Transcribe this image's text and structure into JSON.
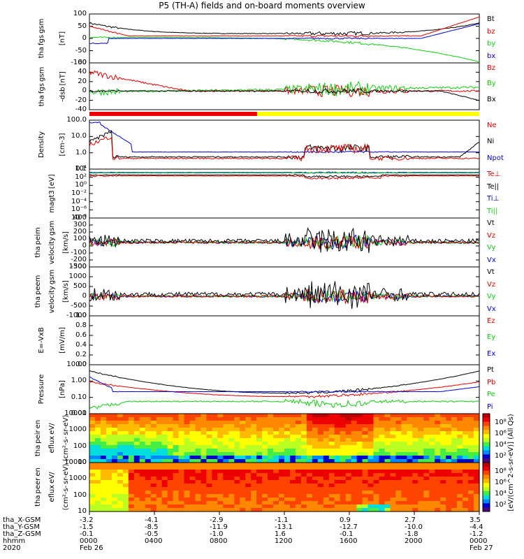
{
  "title": "P5 (TH-A) fields and on-board moments overview",
  "panels": [
    {
      "ylabel": [
        "tha",
        "fgs",
        "gsm",
        "[nT]"
      ],
      "ticks": [
        "100",
        "50",
        "0",
        "-50",
        "-100"
      ],
      "legend": [
        [
          "Bt",
          "#000"
        ],
        [
          "bz",
          "#d00"
        ],
        [
          "by",
          "#1c1"
        ],
        [
          "bx",
          "#00c"
        ]
      ]
    },
    {
      "ylabel": [
        "tha",
        "fgs",
        "gsm",
        "-dsb",
        "[nT]"
      ],
      "ticks": [
        "60",
        "40",
        "20",
        "0",
        "-20",
        "-40"
      ],
      "legend": [
        [
          "Bz",
          "#d00"
        ],
        [
          "By",
          "#1c1"
        ],
        [
          "Bx",
          "#000"
        ]
      ]
    },
    {
      "ylabel": [
        "Density",
        "[cm-3]"
      ],
      "ticks": [
        "100.0",
        "10.0",
        "1.0",
        "0.1"
      ],
      "legend": [
        [
          "Ne",
          "#d00"
        ],
        [
          "Ni",
          "#000"
        ],
        [
          "Npot",
          "#00c"
        ]
      ]
    },
    {
      "ylabel": [
        "magt3",
        "[eV]"
      ],
      "ticks": [
        "10⁴",
        "10²",
        "10⁰",
        "10⁻²",
        "10⁻⁴",
        "10⁻⁶",
        "10⁻⁸"
      ],
      "legend": [
        [
          "Te⊥",
          "#d00"
        ],
        [
          "Te||",
          "#000"
        ],
        [
          "Ti⊥",
          "#00c"
        ],
        [
          "Ti||",
          "#1c1"
        ]
      ]
    },
    {
      "ylabel": [
        "tha",
        "peim",
        "velocity",
        "gsm",
        "[km/s]"
      ],
      "ticks": [
        "400",
        "300",
        "200",
        "100",
        "0",
        "-100",
        "-200",
        "-300"
      ],
      "legend": [
        [
          "Vt",
          "#000"
        ],
        [
          "Vz",
          "#d00"
        ],
        [
          "Vy",
          "#1c1"
        ],
        [
          "Vx",
          "#00c"
        ]
      ]
    },
    {
      "ylabel": [
        "tha",
        "peem",
        "velocity",
        "gsm",
        "[km/s]"
      ],
      "ticks": [
        "1500",
        "1000",
        "500",
        "0",
        "-500",
        "-1000"
      ],
      "legend": [
        [
          "Vt",
          "#000"
        ],
        [
          "Vz",
          "#d00"
        ],
        [
          "Vy",
          "#1c1"
        ],
        [
          "Vx",
          "#00c"
        ]
      ]
    },
    {
      "ylabel": [
        "E=-VxB",
        "[mV/m]"
      ],
      "ticks": [
        "1.0",
        "0.8",
        "0.6",
        "0.4",
        "0.2",
        "0.0"
      ],
      "legend": [
        [
          "Ez",
          "#d00"
        ],
        [
          "Ey",
          "#1c1"
        ],
        [
          "Ex",
          "#00c"
        ]
      ]
    },
    {
      "ylabel": [
        "Pressure",
        "[nPa]"
      ],
      "ticks": [
        "10.00",
        "1.00",
        "0.10",
        "0.01"
      ],
      "legend": [
        [
          "Pt",
          "#000"
        ],
        [
          "Pb",
          "#d00"
        ],
        [
          "Pe",
          "#1c1"
        ],
        [
          "Pi",
          "#00c"
        ]
      ]
    },
    {
      "ylabel": [
        "tha",
        "peir",
        "en",
        "eflux",
        "eV/",
        "(cm²-s-",
        "sr-eV)"
      ],
      "ticks": [
        "10000",
        "1000",
        "100",
        "10"
      ],
      "legend": []
    },
    {
      "ylabel": [
        "tha",
        "peer",
        "en",
        "eflux",
        "eV/",
        "(cm²-s-",
        "sr-eV)"
      ],
      "ticks": [
        "10000",
        "1000",
        "100",
        "10"
      ],
      "legend": []
    }
  ],
  "colorbar": {
    "label": "[eV/(cm^2-s-sr-eV)] (All Qs)",
    "ticks": [
      "10⁸",
      "10⁶",
      "10⁴",
      "10²"
    ]
  },
  "xaxis": {
    "rows": [
      {
        "label": "tha_X-GSM",
        "values": [
          "-3.2",
          "-4.1",
          "-2.9",
          "-1.1",
          "0.9",
          "2.7",
          "3.5"
        ]
      },
      {
        "label": "tha_Y-GSM",
        "values": [
          "-1.5",
          "-8.5",
          "-11.9",
          "-13.1",
          "-12.7",
          "-10.0",
          "-4.4"
        ]
      },
      {
        "label": "tha_Z-GSM",
        "values": [
          "-0.1",
          "-0.5",
          "-1.0",
          "1.6",
          "-0.1",
          "-1.8",
          "-1.2"
        ]
      },
      {
        "label": "hhmm",
        "values": [
          "0000",
          "0400",
          "0800",
          "1200",
          "1600",
          "2000",
          "0000"
        ]
      },
      {
        "label": "2020",
        "values": [
          "Feb 26",
          "",
          "",
          "",
          "",
          "",
          "Feb 27"
        ]
      }
    ]
  },
  "chart_data": {
    "type": "line",
    "title": "P5 (TH-A) fields and on-board moments overview",
    "x": [
      "0000",
      "0400",
      "0800",
      "1200",
      "1600",
      "2000",
      "0000"
    ],
    "series": [
      {
        "name": "Bt (nT)",
        "values": [
          100,
          25,
          15,
          20,
          30,
          25,
          100
        ]
      },
      {
        "name": "bz (nT)",
        "values": [
          50,
          10,
          8,
          15,
          20,
          15,
          70
        ]
      },
      {
        "name": "by (nT)",
        "values": [
          10,
          0,
          -5,
          -10,
          -15,
          -20,
          -100
        ]
      },
      {
        "name": "bx (nT)",
        "values": [
          -5,
          5,
          8,
          5,
          10,
          15,
          40
        ]
      },
      {
        "name": "Ni (cm-3)",
        "values": [
          30,
          0.8,
          0.9,
          1.2,
          5,
          0.4,
          8
        ]
      },
      {
        "name": "Npot (cm-3)",
        "values": [
          100,
          1.5,
          1.0,
          1.0,
          2.0,
          0.8,
          2.0
        ]
      },
      {
        "name": "Pt (nPa)",
        "values": [
          10,
          1.5,
          0.6,
          0.5,
          0.7,
          0.9,
          6
        ]
      }
    ]
  }
}
